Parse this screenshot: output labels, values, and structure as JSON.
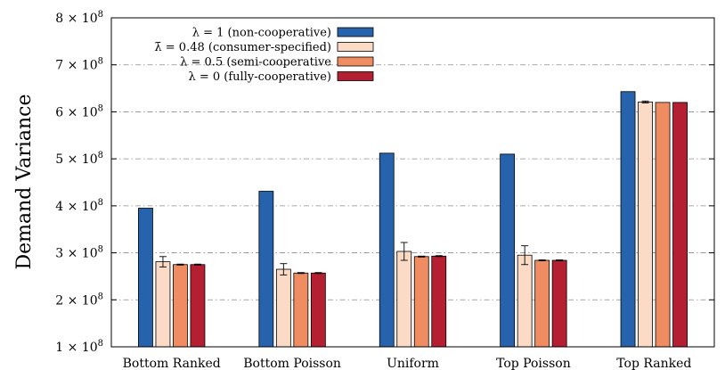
{
  "chart_data": {
    "type": "bar",
    "title": "",
    "xlabel": "",
    "ylabel": "Demand Variance",
    "ylim": [
      100000000,
      800000000
    ],
    "yticks": [
      {
        "value": 100000000,
        "label": "1 × 10",
        "exp": "8"
      },
      {
        "value": 200000000,
        "label": "2 × 10",
        "exp": "8"
      },
      {
        "value": 300000000,
        "label": "3 × 10",
        "exp": "8"
      },
      {
        "value": 400000000,
        "label": "4 × 10",
        "exp": "8"
      },
      {
        "value": 500000000,
        "label": "5 × 10",
        "exp": "8"
      },
      {
        "value": 600000000,
        "label": "6 × 10",
        "exp": "8"
      },
      {
        "value": 700000000,
        "label": "7 × 10",
        "exp": "8"
      },
      {
        "value": 800000000,
        "label": "8 × 10",
        "exp": "8"
      }
    ],
    "grid": true,
    "legend_position": "top-center",
    "categories": [
      "Bottom Ranked",
      "Bottom Poisson",
      "Uniform",
      "Top Poisson",
      "Top Ranked"
    ],
    "series": [
      {
        "name": "λ = 1 (non-cooperative)",
        "color": "#2763ad",
        "values": [
          395000000,
          431000000,
          512000000,
          510000000,
          643000000
        ],
        "errors": [
          0,
          0,
          0,
          0,
          0
        ]
      },
      {
        "name": "λ̄ = 0.48 (consumer-specified)",
        "color": "#fbdbc5",
        "values": [
          281000000,
          265000000,
          303000000,
          295000000,
          621000000
        ],
        "errors": [
          11000000,
          12000000,
          19000000,
          20000000,
          2000000
        ]
      },
      {
        "name": "λ = 0.5 (semi-cooperative",
        "color": "#ef8c62",
        "values": [
          275000000,
          257000000,
          292000000,
          284000000,
          620000000
        ],
        "errors": [
          1000000,
          1000000,
          1000000,
          1000000,
          0
        ]
      },
      {
        "name": "λ = 0 (fully-cooperative)",
        "color": "#b41f31",
        "values": [
          275000000,
          257000000,
          293000000,
          284000000,
          620000000
        ],
        "errors": [
          1000000,
          1000000,
          1000000,
          1000000,
          0
        ]
      }
    ]
  }
}
